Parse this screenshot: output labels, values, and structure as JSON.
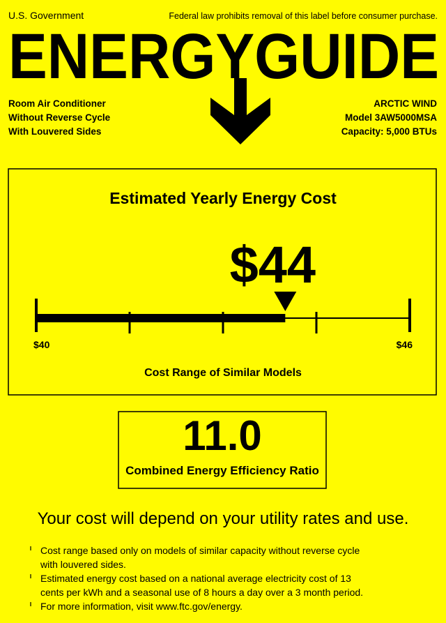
{
  "header": {
    "agency": "U.S. Government",
    "notice": "Federal law prohibits removal of this label before consumer purchase.",
    "title": "ENERGYGUIDE"
  },
  "product": {
    "type_lines": [
      "Room Air Conditioner",
      "Without Reverse Cycle",
      "With Louvered Sides"
    ],
    "brand": "ARCTIC WIND",
    "model": "Model 3AW5000MSA",
    "capacity": "Capacity:  5,000 BTUs"
  },
  "cost": {
    "heading": "Estimated Yearly Energy Cost",
    "value": {
      "value": 44,
      "label": "$44"
    },
    "range_min": {
      "value": 40,
      "label": "$40"
    },
    "range_max": {
      "value": 46,
      "label": "$46"
    },
    "range_caption": "Cost Range of Similar Models"
  },
  "efficiency": {
    "value": "11.0",
    "caption": "Combined Energy Efficiency Ratio"
  },
  "statement": "Your cost will depend on your utility rates and use.",
  "notes": [
    [
      "Cost range based only on models of similar capacity without reverse cycle",
      "with louvered sides."
    ],
    [
      "Estimated energy cost based on a national average electricity cost of 13",
      "cents per kWh and a seasonal use of 8 hours a day over a 3 month period."
    ],
    [
      "For more information, visit www.ftc.gov/energy."
    ]
  ]
}
